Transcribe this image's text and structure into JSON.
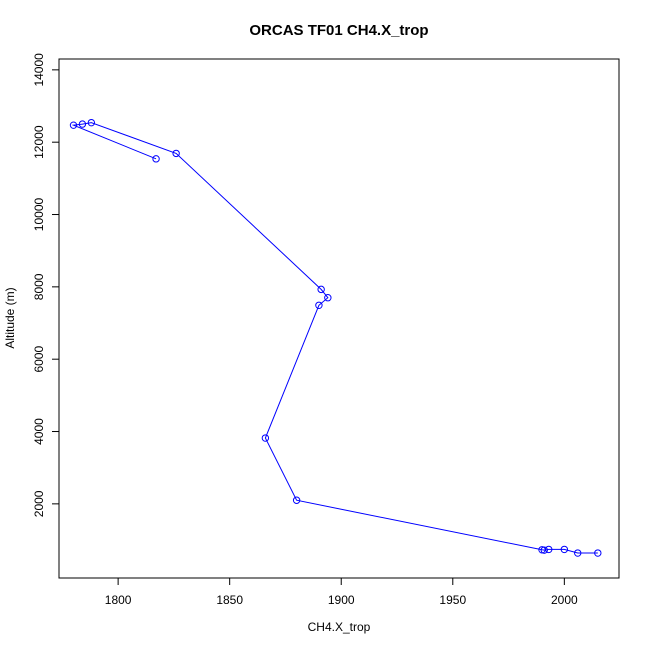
{
  "chart_data": {
    "type": "scatter",
    "title": "ORCAS TF01 CH4.X_trop",
    "xlabel": "CH4.X_trop",
    "ylabel": "Altitude (m)",
    "xlim": [
      1773.5,
      2024.5
    ],
    "ylim": [
      -50,
      14300
    ],
    "x_ticks": [
      1800,
      1850,
      1900,
      1950,
      2000
    ],
    "y_ticks": [
      2000,
      4000,
      6000,
      8000,
      10000,
      12000,
      14000
    ],
    "grid": false,
    "line_color": "#0000ff",
    "marker": "open-circle",
    "series": [
      {
        "x": [
          1817,
          1780,
          1784,
          1788,
          1826,
          1891,
          1894,
          1890,
          1866,
          1880,
          1990,
          1991,
          1993,
          2000,
          2006,
          2015
        ],
        "y": [
          11540,
          12470,
          12500,
          12540,
          11690,
          7930,
          7700,
          7490,
          3820,
          2100,
          730,
          720,
          740,
          740,
          640,
          640
        ]
      }
    ]
  }
}
